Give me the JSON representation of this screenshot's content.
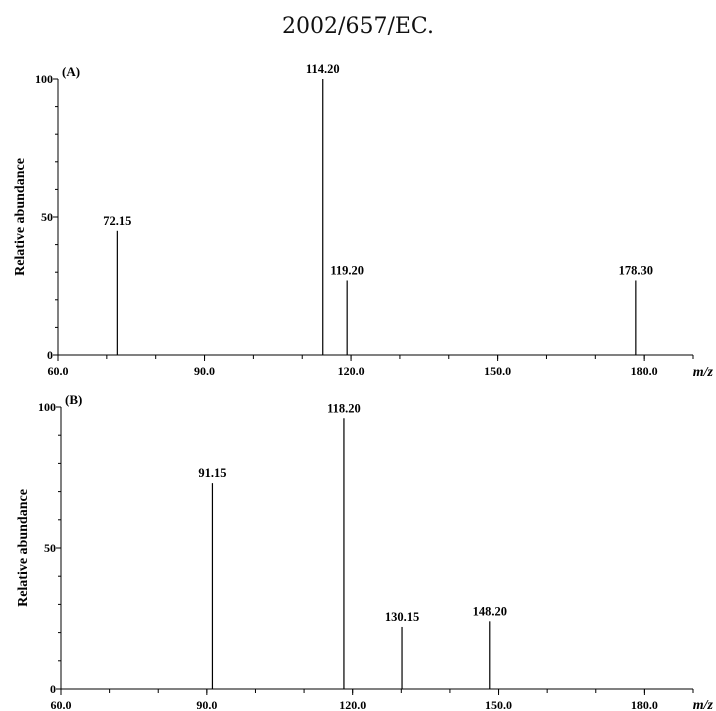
{
  "header": {
    "text": "2002/657/EC."
  },
  "chart_data": [
    {
      "type": "bar",
      "panel_label": "(A)",
      "ylabel": "Relative abundance",
      "xlabel": "m/z",
      "xlim": [
        60.0,
        190.0
      ],
      "ylim": [
        0,
        100
      ],
      "x_ticks": [
        "60.0",
        "90.0",
        "120.0",
        "150.0",
        "180.0"
      ],
      "y_ticks": [
        "0",
        "50",
        "100"
      ],
      "peaks": [
        {
          "x": 72.15,
          "y": 45,
          "label": "72.15"
        },
        {
          "x": 114.2,
          "y": 100,
          "label": "114.20"
        },
        {
          "x": 119.2,
          "y": 27,
          "label": "119.20"
        },
        {
          "x": 178.3,
          "y": 27,
          "label": "178.30"
        }
      ]
    },
    {
      "type": "bar",
      "panel_label": "(B)",
      "ylabel": "Relative abundance",
      "xlabel": "m/z",
      "xlim": [
        60.0,
        190.0
      ],
      "ylim": [
        0,
        100
      ],
      "x_ticks": [
        "60.0",
        "90.0",
        "120.0",
        "150.0",
        "180.0"
      ],
      "y_ticks": [
        "0",
        "50",
        "100"
      ],
      "peaks": [
        {
          "x": 91.15,
          "y": 73,
          "label": "91.15"
        },
        {
          "x": 118.2,
          "y": 96,
          "label": "118.20"
        },
        {
          "x": 130.15,
          "y": 22,
          "label": "130.15"
        },
        {
          "x": 148.2,
          "y": 24,
          "label": "148.20"
        }
      ]
    }
  ]
}
